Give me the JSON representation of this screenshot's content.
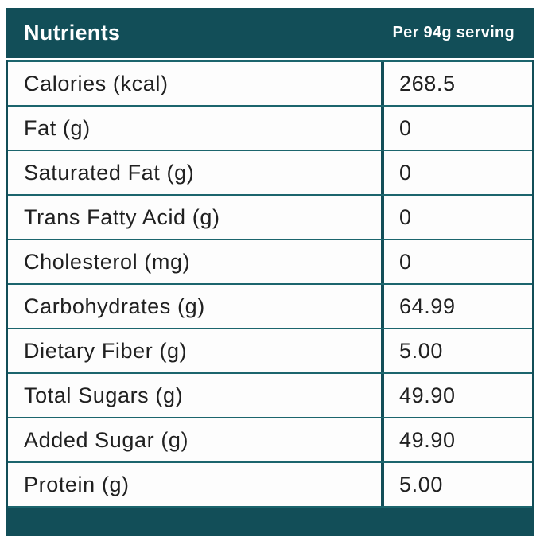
{
  "table": {
    "header": {
      "title": "Nutrients",
      "serving_label": "Per 94g serving"
    },
    "rows": [
      {
        "label": "Calories (kcal)",
        "value": "268.5"
      },
      {
        "label": "Fat (g)",
        "value": "0"
      },
      {
        "label": "Saturated Fat (g)",
        "value": "0"
      },
      {
        "label": "Trans Fatty Acid (g)",
        "value": "0"
      },
      {
        "label": "Cholesterol (mg)",
        "value": "0"
      },
      {
        "label": "Carbohydrates (g)",
        "value": "64.99"
      },
      {
        "label": "Dietary Fiber (g)",
        "value": "5.00"
      },
      {
        "label": "Total Sugars (g)",
        "value": "49.90"
      },
      {
        "label": "Added Sugar (g)",
        "value": "49.90"
      },
      {
        "label": "Protein (g)",
        "value": "5.00"
      }
    ],
    "colors": {
      "header_teal": "#124e58",
      "row_border_teal": "#1c656d",
      "text_dark": "#202020",
      "background": "#ffffff"
    }
  },
  "chart_data": {
    "type": "table",
    "title": "Nutrients",
    "columns": [
      "Nutrients",
      "Per 94g serving"
    ],
    "categories": [
      "Calories (kcal)",
      "Fat (g)",
      "Saturated Fat (g)",
      "Trans Fatty Acid (g)",
      "Cholesterol (mg)",
      "Carbohydrates (g)",
      "Dietary Fiber (g)",
      "Total Sugars (g)",
      "Added Sugar (g)",
      "Protein (g)"
    ],
    "values": [
      268.5,
      0,
      0,
      0,
      0,
      64.99,
      5.0,
      49.9,
      49.9,
      5.0
    ]
  }
}
